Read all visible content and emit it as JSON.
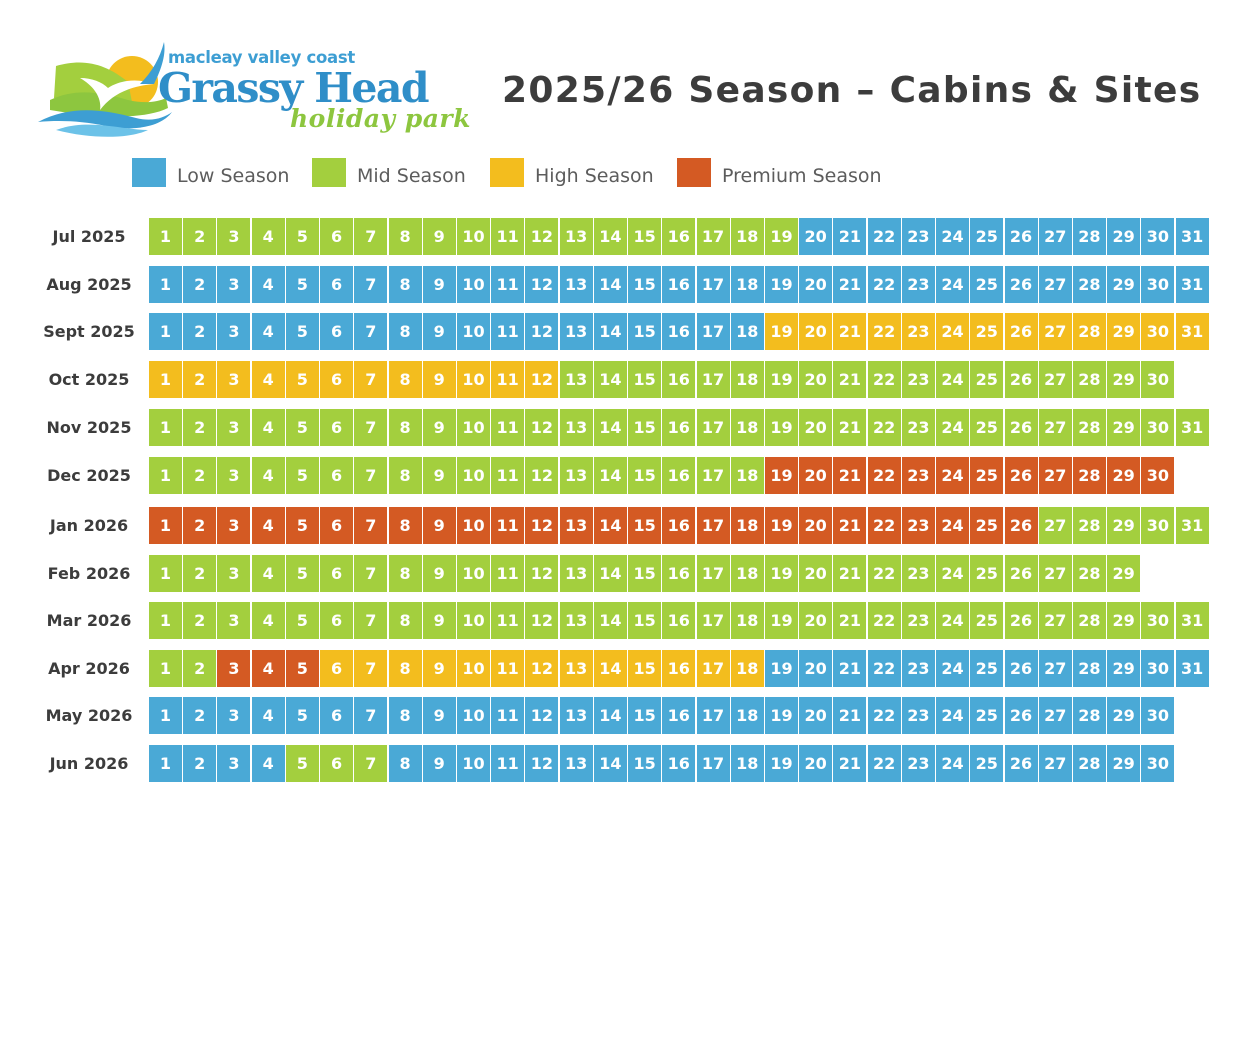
{
  "brand": {
    "tagline": "macleay valley coast",
    "name": "Grassy Head",
    "sub": "holiday park"
  },
  "title": "2025/26 Season – Cabins & Sites",
  "colors": {
    "low": "#4aa9d6",
    "mid": "#a3cf3e",
    "high": "#f3bd1e",
    "premium": "#d45a23"
  },
  "legend": [
    {
      "key": "low",
      "label": "Low Season"
    },
    {
      "key": "mid",
      "label": "Mid Season"
    },
    {
      "key": "high",
      "label": "High Season"
    },
    {
      "key": "premium",
      "label": "Premium Season"
    }
  ],
  "months": [
    {
      "label": "Jul 2025",
      "days": 31,
      "runs": [
        [
          "mid",
          19
        ],
        [
          "low",
          12
        ]
      ]
    },
    {
      "label": "Aug 2025",
      "days": 31,
      "runs": [
        [
          "low",
          31
        ]
      ]
    },
    {
      "label": "Sept 2025",
      "days": 31,
      "runs": [
        [
          "low",
          18
        ],
        [
          "high",
          13
        ]
      ]
    },
    {
      "label": "Oct 2025",
      "days": 30,
      "runs": [
        [
          "high",
          12
        ],
        [
          "mid",
          18
        ]
      ]
    },
    {
      "label": "Nov 2025",
      "days": 31,
      "runs": [
        [
          "mid",
          31
        ]
      ]
    },
    {
      "label": "Dec 2025",
      "days": 30,
      "runs": [
        [
          "mid",
          18
        ],
        [
          "premium",
          12
        ]
      ]
    },
    {
      "label": "Jan 2026",
      "days": 31,
      "runs": [
        [
          "premium",
          26
        ],
        [
          "mid",
          5
        ]
      ]
    },
    {
      "label": "Feb 2026",
      "days": 29,
      "runs": [
        [
          "mid",
          29
        ]
      ]
    },
    {
      "label": "Mar 2026",
      "days": 31,
      "runs": [
        [
          "mid",
          31
        ]
      ]
    },
    {
      "label": "Apr 2026",
      "days": 31,
      "runs": [
        [
          "mid",
          2
        ],
        [
          "premium",
          3
        ],
        [
          "high",
          13
        ],
        [
          "low",
          13
        ]
      ]
    },
    {
      "label": "May 2026",
      "days": 30,
      "runs": [
        [
          "low",
          30
        ]
      ]
    },
    {
      "label": "Jun 2026",
      "days": 30,
      "runs": [
        [
          "low",
          4
        ],
        [
          "mid",
          3
        ],
        [
          "low",
          23
        ]
      ]
    }
  ]
}
